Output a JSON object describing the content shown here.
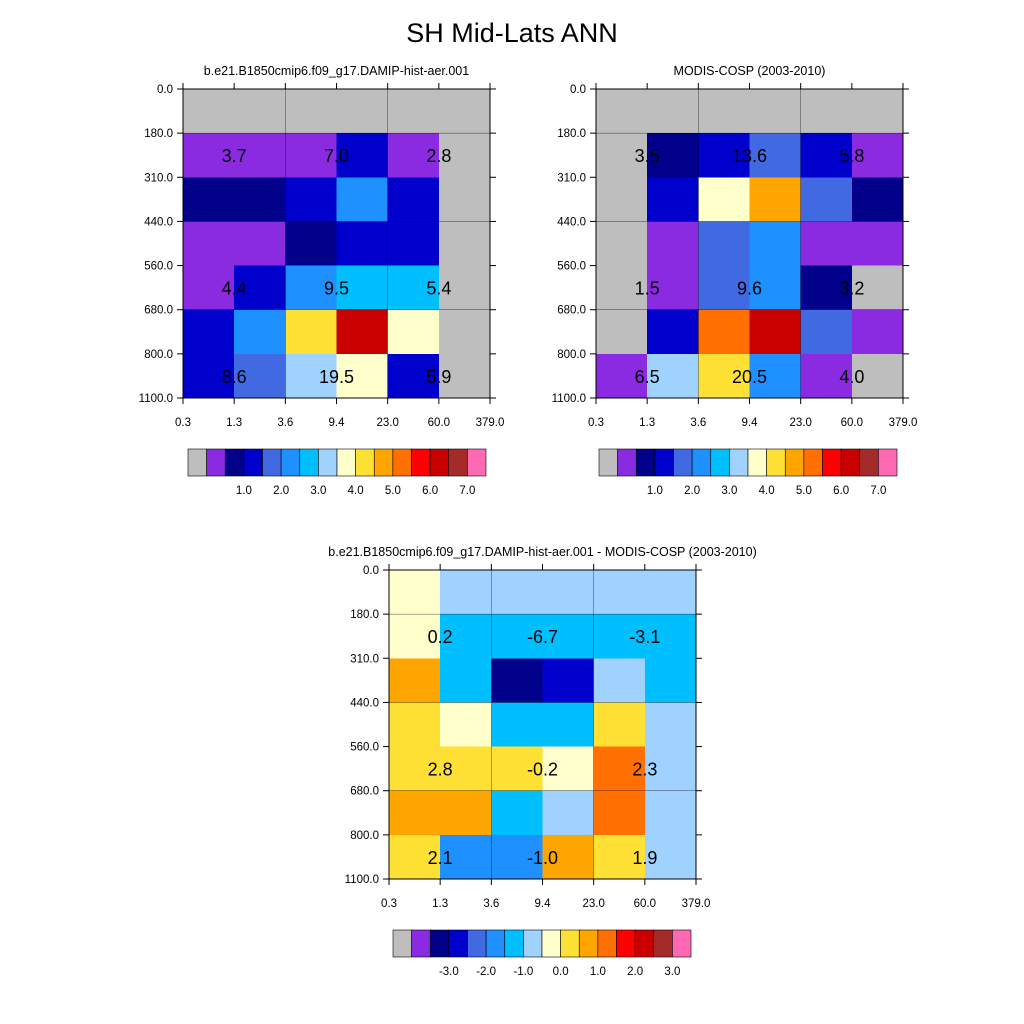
{
  "title": "SH Mid-Lats ANN",
  "colors": {
    "missing": "#bebebe",
    "abs_scale": [
      "#8a2be2",
      "#00008b",
      "#0000cd",
      "#4169e1",
      "#1e90ff",
      "#00bfff",
      "#a0d2ff",
      "#ffffcc",
      "#ffe135",
      "#ffa500",
      "#ff7000",
      "#ff0000",
      "#c80000",
      "#a52a2a",
      "#ff69b4"
    ],
    "diff_scale": [
      "#8a2be2",
      "#00008b",
      "#0000cd",
      "#4169e1",
      "#1e90ff",
      "#00bfff",
      "#a0d2ff",
      "#ffffcc",
      "#ffe135",
      "#ffa500",
      "#ff7000",
      "#ff0000",
      "#c80000",
      "#a52a2a",
      "#ff69b4"
    ]
  },
  "chart_data": [
    {
      "type": "heatmap",
      "title": "b.e21.B1850cmip6.f09_g17.DAMIP-hist-aer.001",
      "x_ticks": [
        "0.3",
        "1.3",
        "3.6",
        "9.4",
        "23.0",
        "60.0",
        "379.0"
      ],
      "y_ticks": [
        "0.0",
        "180.0",
        "310.0",
        "440.0",
        "560.0",
        "680.0",
        "800.0",
        "1100.0"
      ],
      "cells": [
        [
          "missing",
          "missing",
          "missing",
          "missing",
          "missing",
          "missing"
        ],
        [
          0,
          0,
          0,
          2,
          0,
          "missing"
        ],
        [
          1,
          1,
          2,
          4,
          2,
          "missing"
        ],
        [
          0,
          0,
          1,
          2,
          2,
          "missing"
        ],
        [
          0,
          2,
          4,
          5,
          5,
          "missing"
        ],
        [
          2,
          4,
          8,
          12,
          7,
          "missing"
        ],
        [
          2,
          3,
          6,
          7,
          2,
          "missing"
        ]
      ],
      "labels": [
        {
          "text": "3.7",
          "col": 0,
          "row": 1
        },
        {
          "text": "7.0",
          "col": 2,
          "row": 1
        },
        {
          "text": "2.8",
          "col": 4,
          "row": 1
        },
        {
          "text": "4.4",
          "col": 0,
          "row": 4
        },
        {
          "text": "9.5",
          "col": 2,
          "row": 4
        },
        {
          "text": "5.4",
          "col": 4,
          "row": 4
        },
        {
          "text": "8.6",
          "col": 0,
          "row": 6
        },
        {
          "text": "19.5",
          "col": 2,
          "row": 6
        },
        {
          "text": "5.9",
          "col": 4,
          "row": 6
        }
      ],
      "colorbar": {
        "scale": "abs_scale",
        "leading_missing": true,
        "tick_labels": [
          "1.0",
          "2.0",
          "3.0",
          "4.0",
          "5.0",
          "6.0",
          "7.0"
        ]
      }
    },
    {
      "type": "heatmap",
      "title": "MODIS-COSP (2003-2010)",
      "x_ticks": [
        "0.3",
        "1.3",
        "3.6",
        "9.4",
        "23.0",
        "60.0",
        "379.0"
      ],
      "y_ticks": [
        "0.0",
        "180.0",
        "310.0",
        "440.0",
        "560.0",
        "680.0",
        "800.0",
        "1100.0"
      ],
      "cells": [
        [
          "missing",
          "missing",
          "missing",
          "missing",
          "missing",
          "missing"
        ],
        [
          "missing",
          1,
          2,
          3,
          2,
          0
        ],
        [
          "missing",
          2,
          7,
          9,
          3,
          1
        ],
        [
          "missing",
          0,
          3,
          4,
          0,
          0
        ],
        [
          "missing",
          0,
          3,
          4,
          1,
          "missing"
        ],
        [
          "missing",
          2,
          10,
          12,
          3,
          0
        ],
        [
          0,
          6,
          8,
          4,
          0,
          "missing"
        ]
      ],
      "labels": [
        {
          "text": "3.5",
          "col": 0,
          "row": 1
        },
        {
          "text": "13.6",
          "col": 2,
          "row": 1
        },
        {
          "text": "5.8",
          "col": 4,
          "row": 1
        },
        {
          "text": "1.5",
          "col": 0,
          "row": 4
        },
        {
          "text": "9.6",
          "col": 2,
          "row": 4
        },
        {
          "text": "3.2",
          "col": 4,
          "row": 4
        },
        {
          "text": "6.5",
          "col": 0,
          "row": 6
        },
        {
          "text": "20.5",
          "col": 2,
          "row": 6
        },
        {
          "text": "4.0",
          "col": 4,
          "row": 6
        }
      ],
      "colorbar": {
        "scale": "abs_scale",
        "leading_missing": true,
        "tick_labels": [
          "1.0",
          "2.0",
          "3.0",
          "4.0",
          "5.0",
          "6.0",
          "7.0"
        ]
      }
    },
    {
      "type": "heatmap",
      "title": "b.e21.B1850cmip6.f09_g17.DAMIP-hist-aer.001 - MODIS-COSP (2003-2010)",
      "x_ticks": [
        "0.3",
        "1.3",
        "3.6",
        "9.4",
        "23.0",
        "60.0",
        "379.0"
      ],
      "y_ticks": [
        "0.0",
        "180.0",
        "310.0",
        "440.0",
        "560.0",
        "680.0",
        "800.0",
        "1100.0"
      ],
      "cells": [
        [
          7,
          6,
          6,
          6,
          6,
          6
        ],
        [
          7,
          5,
          5,
          5,
          5,
          5
        ],
        [
          9,
          5,
          1,
          2,
          6,
          5
        ],
        [
          8,
          7,
          5,
          5,
          8,
          6
        ],
        [
          8,
          8,
          8,
          7,
          10,
          6
        ],
        [
          9,
          9,
          5,
          6,
          10,
          6
        ],
        [
          8,
          4,
          4,
          9,
          8,
          6
        ]
      ],
      "labels": [
        {
          "text": "0.2",
          "col": 0,
          "row": 1
        },
        {
          "text": "-6.7",
          "col": 2,
          "row": 1
        },
        {
          "text": "-3.1",
          "col": 4,
          "row": 1
        },
        {
          "text": "2.8",
          "col": 0,
          "row": 4
        },
        {
          "text": "-0.2",
          "col": 2,
          "row": 4
        },
        {
          "text": "2.3",
          "col": 4,
          "row": 4
        },
        {
          "text": "2.1",
          "col": 0,
          "row": 6
        },
        {
          "text": "-1.0",
          "col": 2,
          "row": 6
        },
        {
          "text": "1.9",
          "col": 4,
          "row": 6
        }
      ],
      "colorbar": {
        "scale": "diff_scale",
        "leading_missing": true,
        "tick_labels": [
          "-3.0",
          "-2.0",
          "-1.0",
          "0.0",
          "1.0",
          "2.0",
          "3.0"
        ]
      }
    }
  ]
}
